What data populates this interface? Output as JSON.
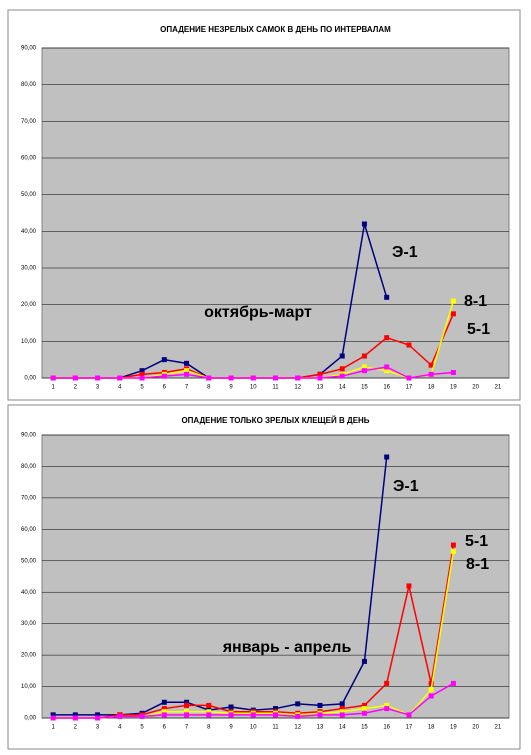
{
  "chart_data": [
    {
      "type": "line",
      "title": "ОПАДЕНИЕ НЕЗРЕЛЫХ САМОК В ДЕНЬ ПО ИНТЕРВАЛАМ",
      "categories": [
        "1",
        "2",
        "3",
        "4",
        "5",
        "6",
        "7",
        "8",
        "9",
        "10",
        "11",
        "12",
        "13",
        "14",
        "15",
        "16",
        "17",
        "18",
        "19",
        "20",
        "21"
      ],
      "ylim": [
        0,
        90
      ],
      "yticks": [
        {
          "value": 0,
          "label": "0,00"
        },
        {
          "value": 10,
          "label": "10,00"
        },
        {
          "value": 20,
          "label": "20,00"
        },
        {
          "value": 30,
          "label": "30,00"
        },
        {
          "value": 40,
          "label": "40,00"
        },
        {
          "value": 50,
          "label": "50,00"
        },
        {
          "value": 60,
          "label": "60,00"
        },
        {
          "value": 70,
          "label": "70,00"
        },
        {
          "value": 80,
          "label": "80,00"
        },
        {
          "value": 90,
          "label": "90,00"
        }
      ],
      "grid": true,
      "series": [
        {
          "name": "Э-1",
          "color": "#000080",
          "values": [
            0,
            0,
            0,
            0,
            2,
            5,
            4,
            0,
            0,
            0,
            0,
            0,
            1,
            6,
            42,
            22,
            null,
            null,
            null,
            null,
            null
          ]
        },
        {
          "name": "5-1",
          "color": "#ff0000",
          "values": [
            0,
            0,
            0,
            0,
            1,
            1.5,
            2.5,
            0,
            0,
            0,
            0,
            0,
            1,
            2.5,
            6,
            11,
            9,
            3.5,
            17.5,
            null,
            null
          ]
        },
        {
          "name": "8-1",
          "color": "#ffff00",
          "values": [
            0,
            0,
            0,
            0,
            0,
            1,
            2,
            0,
            0,
            0,
            0,
            0,
            0,
            1,
            3,
            2,
            0,
            1,
            21,
            null,
            null
          ]
        },
        {
          "color": "#ff00ff",
          "values": [
            0,
            0,
            0,
            0,
            0,
            0.5,
            1,
            0,
            0,
            0,
            0,
            0,
            0,
            0.5,
            2,
            3,
            0,
            1,
            1.5,
            null,
            null
          ]
        }
      ],
      "annotations": [
        "октябрь-март"
      ]
    },
    {
      "type": "line",
      "title": "ОПАДЕНИЕ ТОЛЬКО ЗРЕЛЫХ КЛЕЩЕЙ В ДЕНЬ",
      "categories": [
        "1",
        "2",
        "3",
        "4",
        "5",
        "6",
        "7",
        "8",
        "9",
        "10",
        "11",
        "12",
        "13",
        "14",
        "15",
        "16",
        "17",
        "18",
        "19",
        "20",
        "21"
      ],
      "ylim": [
        0,
        90
      ],
      "yticks": [
        {
          "value": 0,
          "label": "0,00"
        },
        {
          "value": 10,
          "label": "10,00"
        },
        {
          "value": 20,
          "label": "20,00"
        },
        {
          "value": 30,
          "label": "30,00"
        },
        {
          "value": 40,
          "label": "40,00"
        },
        {
          "value": 50,
          "label": "50,00"
        },
        {
          "value": 60,
          "label": "60,00"
        },
        {
          "value": 70,
          "label": "70,00"
        },
        {
          "value": 80,
          "label": "80,00"
        },
        {
          "value": 90,
          "label": "90,00"
        }
      ],
      "grid": true,
      "series": [
        {
          "name": "Э-1",
          "color": "#000080",
          "values": [
            1,
            1,
            1,
            1,
            1.5,
            5,
            5,
            2.5,
            3.5,
            2.5,
            3,
            4.5,
            4,
            4.5,
            18,
            83,
            null,
            null,
            null,
            null,
            null
          ]
        },
        {
          "name": "5-1",
          "color": "#ff0000",
          "values": [
            0,
            0,
            0,
            1,
            1,
            3,
            4,
            4,
            2,
            2,
            2,
            1.5,
            2,
            3,
            4,
            11,
            42,
            11,
            55,
            null,
            null
          ]
        },
        {
          "name": "8-1",
          "color": "#ffff00",
          "values": [
            0,
            0,
            0,
            0.5,
            0.5,
            2,
            2,
            2,
            1.5,
            1.5,
            1.5,
            1,
            1.5,
            2,
            3,
            4,
            1,
            9,
            53,
            null,
            null
          ]
        },
        {
          "color": "#ff00ff",
          "values": [
            0,
            0,
            0,
            0.5,
            0.5,
            1,
            1,
            1,
            1,
            1,
            1,
            0.5,
            1,
            1,
            1.5,
            3,
            1,
            7,
            11,
            null,
            null
          ]
        }
      ],
      "annotations": [
        "январь - апрель"
      ]
    }
  ]
}
